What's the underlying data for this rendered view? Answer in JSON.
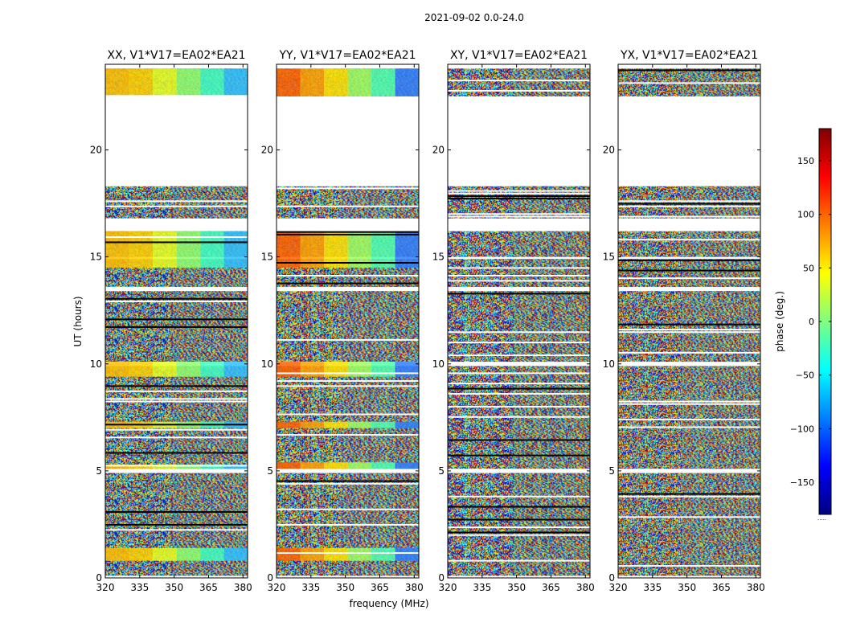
{
  "suptitle": "2021-09-02 0.0-24.0",
  "chart_data": {
    "type": "heatmap",
    "xlabel": "frequency (MHz)",
    "ylabel": "UT (hours)",
    "xlim": [
      320,
      382
    ],
    "ylim": [
      0,
      24
    ],
    "xticks": [
      320,
      335,
      350,
      365,
      380
    ],
    "yticks": [
      0,
      5,
      10,
      15,
      20
    ],
    "colorbar": {
      "label": "phase (deg.)",
      "range": [
        -180,
        180
      ],
      "ticks": [
        150,
        100,
        50,
        0,
        -50,
        -100,
        -150
      ],
      "tick_labels": [
        "150",
        "100",
        "50",
        "0",
        "−50",
        "−100",
        "−150"
      ],
      "colormap": "jet",
      "colors": [
        "#00007f",
        "#0000ff",
        "#007fff",
        "#00ffff",
        "#7fff7f",
        "#ffff00",
        "#ff7f00",
        "#ff0000",
        "#7f0000"
      ],
      "bottom_note": "....."
    },
    "data_blocks_hours": [
      [
        0.1,
        4.9
      ],
      [
        5.1,
        9.9
      ],
      [
        10.1,
        13.4
      ],
      [
        13.6,
        14.9
      ],
      [
        15.0,
        16.2
      ],
      [
        16.8,
        18.3
      ],
      [
        22.5,
        23.8
      ]
    ],
    "gap_hours": [
      [
        18.3,
        22.5
      ]
    ],
    "panels": [
      {
        "title": "XX, V1*V17=EA02*EA21",
        "coherent_hours": [
          [
            0.8,
            1.4
          ],
          [
            5.1,
            5.3
          ],
          [
            7.0,
            7.3
          ],
          [
            9.4,
            10.1
          ],
          [
            14.5,
            16.2
          ],
          [
            22.5,
            23.8
          ]
        ]
      },
      {
        "title": "YY, V1*V17=EA02*EA21",
        "coherent_hours": [
          [
            0.8,
            1.4
          ],
          [
            5.1,
            5.4
          ],
          [
            7.0,
            7.3
          ],
          [
            9.4,
            10.1
          ],
          [
            14.5,
            16.2
          ],
          [
            22.5,
            23.8
          ]
        ]
      },
      {
        "title": "XY, V1*V17=EA02*EA21",
        "coherent_hours": []
      },
      {
        "title": "YX, V1*V17=EA02*EA21",
        "coherent_hours": []
      }
    ]
  }
}
